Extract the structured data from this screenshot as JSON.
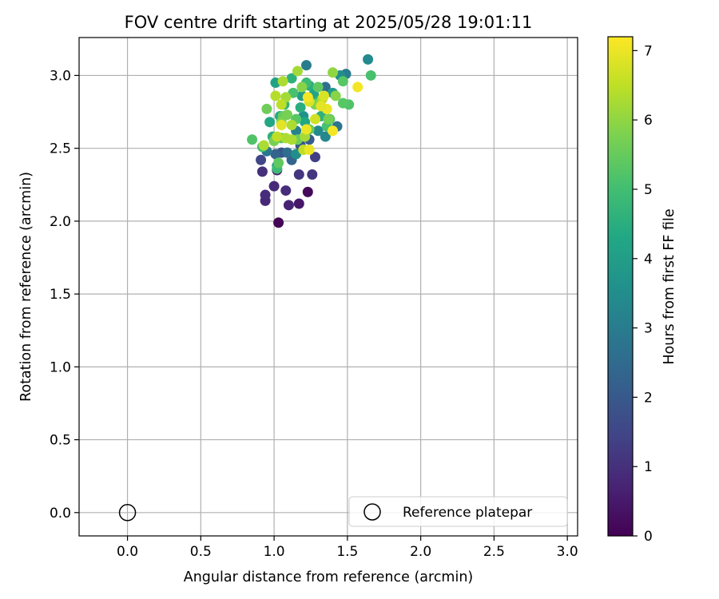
{
  "chart_data": {
    "type": "scatter",
    "title": "FOV centre drift starting at 2025/05/28 19:01:11",
    "xlabel": "Angular distance from reference (arcmin)",
    "ylabel": "Rotation from reference (arcmin)",
    "xlim": [
      -0.33,
      3.07
    ],
    "ylim": [
      -0.16,
      3.26
    ],
    "xticks": [
      0.0,
      0.5,
      1.0,
      1.5,
      2.0,
      2.5,
      3.0
    ],
    "yticks": [
      0.0,
      0.5,
      1.0,
      1.5,
      2.0,
      2.5,
      3.0
    ],
    "xtick_labels": [
      "0.0",
      "0.5",
      "1.0",
      "1.5",
      "2.0",
      "2.5",
      "3.0"
    ],
    "ytick_labels": [
      "0.0",
      "0.5",
      "1.0",
      "1.5",
      "2.0",
      "2.5",
      "3.0"
    ],
    "grid": true,
    "colormap": "viridis",
    "colorbar": {
      "label": "Hours from first FF file",
      "range": [
        0,
        7.2
      ],
      "ticks": [
        0,
        1,
        2,
        3,
        4,
        5,
        6,
        7
      ],
      "tick_labels": [
        "0",
        "1",
        "2",
        "3",
        "4",
        "5",
        "6",
        "7"
      ]
    },
    "reference": {
      "name": "Reference platepar",
      "x": 0.0,
      "y": 0.0
    },
    "legend": {
      "placement": "bottom-right",
      "entries": [
        "Reference platepar"
      ]
    },
    "points": [
      {
        "x": 1.03,
        "y": 1.99,
        "t": 0.05
      },
      {
        "x": 1.23,
        "y": 2.2,
        "t": 0.15
      },
      {
        "x": 1.17,
        "y": 2.12,
        "t": 0.45
      },
      {
        "x": 1.1,
        "y": 2.11,
        "t": 0.7
      },
      {
        "x": 0.94,
        "y": 2.14,
        "t": 0.8
      },
      {
        "x": 0.94,
        "y": 2.18,
        "t": 0.9
      },
      {
        "x": 1.0,
        "y": 2.24,
        "t": 0.85
      },
      {
        "x": 1.08,
        "y": 2.21,
        "t": 0.9
      },
      {
        "x": 1.02,
        "y": 2.35,
        "t": 0.55
      },
      {
        "x": 0.92,
        "y": 2.34,
        "t": 1.0
      },
      {
        "x": 1.17,
        "y": 2.32,
        "t": 1.1
      },
      {
        "x": 1.26,
        "y": 2.32,
        "t": 1.1
      },
      {
        "x": 1.28,
        "y": 2.44,
        "t": 1.3
      },
      {
        "x": 0.91,
        "y": 2.42,
        "t": 1.5
      },
      {
        "x": 1.05,
        "y": 2.47,
        "t": 1.8
      },
      {
        "x": 1.12,
        "y": 2.42,
        "t": 2.3
      },
      {
        "x": 1.18,
        "y": 2.52,
        "t": 1.9
      },
      {
        "x": 1.24,
        "y": 2.56,
        "t": 2.1
      },
      {
        "x": 1.09,
        "y": 2.47,
        "t": 2.6
      },
      {
        "x": 1.01,
        "y": 2.46,
        "t": 2.3
      },
      {
        "x": 0.95,
        "y": 2.48,
        "t": 2.8
      },
      {
        "x": 1.22,
        "y": 3.07,
        "t": 3.0
      },
      {
        "x": 1.64,
        "y": 3.11,
        "t": 3.4
      },
      {
        "x": 1.49,
        "y": 3.01,
        "t": 3.0
      },
      {
        "x": 1.35,
        "y": 2.92,
        "t": 2.6
      },
      {
        "x": 1.43,
        "y": 2.65,
        "t": 2.8
      },
      {
        "x": 1.35,
        "y": 2.58,
        "t": 3.3
      },
      {
        "x": 1.15,
        "y": 2.62,
        "t": 3.2
      },
      {
        "x": 1.2,
        "y": 2.72,
        "t": 3.6
      },
      {
        "x": 1.3,
        "y": 2.62,
        "t": 3.4
      },
      {
        "x": 1.02,
        "y": 2.38,
        "t": 3.8
      },
      {
        "x": 1.15,
        "y": 2.46,
        "t": 3.5
      },
      {
        "x": 1.45,
        "y": 3.0,
        "t": 3.5
      },
      {
        "x": 1.4,
        "y": 2.88,
        "t": 3.9
      },
      {
        "x": 1.01,
        "y": 2.95,
        "t": 4.1
      },
      {
        "x": 1.19,
        "y": 2.86,
        "t": 4.0
      },
      {
        "x": 1.27,
        "y": 2.87,
        "t": 4.2
      },
      {
        "x": 1.12,
        "y": 2.98,
        "t": 4.6
      },
      {
        "x": 0.97,
        "y": 2.68,
        "t": 4.3
      },
      {
        "x": 1.04,
        "y": 2.72,
        "t": 4.4
      },
      {
        "x": 1.24,
        "y": 2.93,
        "t": 4.5
      },
      {
        "x": 1.32,
        "y": 2.72,
        "t": 4.6
      },
      {
        "x": 1.27,
        "y": 2.82,
        "t": 4.4
      },
      {
        "x": 1.18,
        "y": 2.78,
        "t": 4.5
      },
      {
        "x": 1.21,
        "y": 2.68,
        "t": 4.3
      },
      {
        "x": 1.07,
        "y": 2.8,
        "t": 4.7
      },
      {
        "x": 0.99,
        "y": 2.58,
        "t": 4.6
      },
      {
        "x": 1.02,
        "y": 2.36,
        "t": 4.9
      },
      {
        "x": 0.85,
        "y": 2.56,
        "t": 5.2
      },
      {
        "x": 0.92,
        "y": 2.51,
        "t": 5.0
      },
      {
        "x": 1.36,
        "y": 2.65,
        "t": 5.1
      },
      {
        "x": 1.13,
        "y": 2.88,
        "t": 5.1
      },
      {
        "x": 1.22,
        "y": 2.95,
        "t": 4.9
      },
      {
        "x": 1.3,
        "y": 2.92,
        "t": 5.4
      },
      {
        "x": 1.47,
        "y": 2.96,
        "t": 5.3
      },
      {
        "x": 1.51,
        "y": 2.8,
        "t": 5.2
      },
      {
        "x": 1.47,
        "y": 2.81,
        "t": 5.3
      },
      {
        "x": 1.66,
        "y": 3.0,
        "t": 5.1
      },
      {
        "x": 1.38,
        "y": 2.7,
        "t": 5.3
      },
      {
        "x": 1.15,
        "y": 2.7,
        "t": 5.3
      },
      {
        "x": 1.31,
        "y": 2.82,
        "t": 5.0
      },
      {
        "x": 1.06,
        "y": 2.72,
        "t": 5.5
      },
      {
        "x": 1.05,
        "y": 2.57,
        "t": 5.3
      },
      {
        "x": 1.24,
        "y": 2.63,
        "t": 5.5
      },
      {
        "x": 1.0,
        "y": 2.55,
        "t": 5.7
      },
      {
        "x": 1.16,
        "y": 2.56,
        "t": 5.6
      },
      {
        "x": 1.03,
        "y": 2.4,
        "t": 5.4
      },
      {
        "x": 0.95,
        "y": 2.77,
        "t": 5.6
      },
      {
        "x": 1.05,
        "y": 2.68,
        "t": 5.8
      },
      {
        "x": 1.09,
        "y": 2.73,
        "t": 5.7
      },
      {
        "x": 1.19,
        "y": 2.92,
        "t": 5.9
      },
      {
        "x": 1.28,
        "y": 2.8,
        "t": 5.8
      },
      {
        "x": 1.37,
        "y": 2.7,
        "t": 5.7
      },
      {
        "x": 1.42,
        "y": 2.86,
        "t": 5.9
      },
      {
        "x": 1.4,
        "y": 3.02,
        "t": 6.0
      },
      {
        "x": 1.16,
        "y": 3.03,
        "t": 6.2
      },
      {
        "x": 1.06,
        "y": 2.96,
        "t": 6.3
      },
      {
        "x": 0.93,
        "y": 2.52,
        "t": 6.3
      },
      {
        "x": 1.08,
        "y": 2.57,
        "t": 6.3
      },
      {
        "x": 1.12,
        "y": 2.66,
        "t": 6.3
      },
      {
        "x": 1.21,
        "y": 2.58,
        "t": 6.2
      },
      {
        "x": 1.01,
        "y": 2.86,
        "t": 6.4
      },
      {
        "x": 1.08,
        "y": 2.85,
        "t": 6.2
      },
      {
        "x": 1.33,
        "y": 2.84,
        "t": 6.4
      },
      {
        "x": 1.12,
        "y": 2.56,
        "t": 6.3
      },
      {
        "x": 1.05,
        "y": 2.8,
        "t": 6.5
      },
      {
        "x": 1.2,
        "y": 2.49,
        "t": 6.5
      },
      {
        "x": 1.02,
        "y": 2.58,
        "t": 6.5
      },
      {
        "x": 1.28,
        "y": 2.7,
        "t": 6.7
      },
      {
        "x": 1.24,
        "y": 2.82,
        "t": 6.8
      },
      {
        "x": 1.34,
        "y": 2.86,
        "t": 6.8
      },
      {
        "x": 1.22,
        "y": 2.63,
        "t": 7.0
      },
      {
        "x": 1.36,
        "y": 2.77,
        "t": 7.0
      },
      {
        "x": 1.23,
        "y": 2.85,
        "t": 7.1
      },
      {
        "x": 1.4,
        "y": 2.62,
        "t": 7.1
      },
      {
        "x": 1.57,
        "y": 2.92,
        "t": 7.1
      },
      {
        "x": 1.24,
        "y": 2.49,
        "t": 7.0
      },
      {
        "x": 1.32,
        "y": 2.79,
        "t": 6.9
      },
      {
        "x": 1.05,
        "y": 2.66,
        "t": 6.9
      }
    ]
  }
}
